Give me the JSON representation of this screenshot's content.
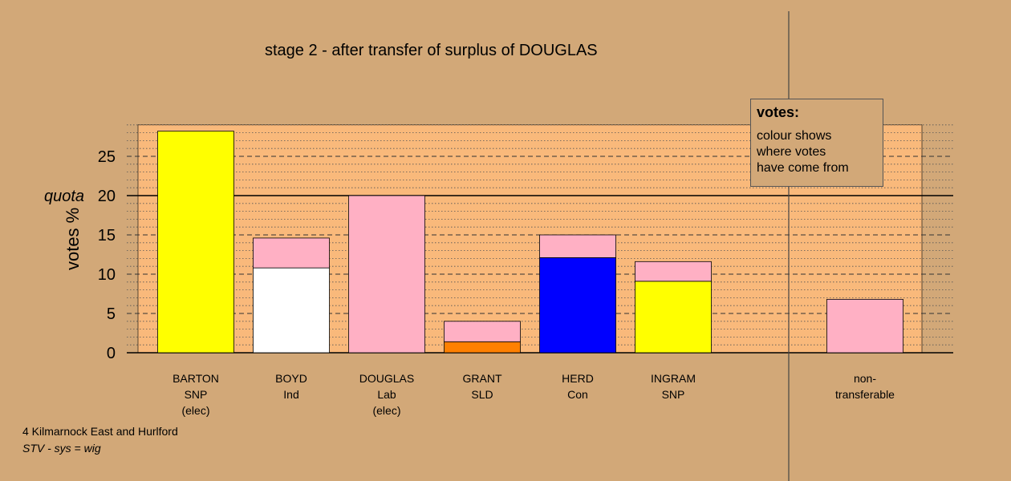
{
  "title": "stage 2 - after transfer of surplus of DOUGLAS",
  "footer": {
    "ward": "4 Kilmarnock East and Hurlford",
    "system": "STV - sys = wig"
  },
  "legend": {
    "title": "votes:",
    "lines": [
      "colour shows",
      "where votes",
      "have come from"
    ]
  },
  "quota_label": "quota",
  "colors": {
    "background": "#d2a878",
    "plot_area": "#f9b97b",
    "SNP": "#ffff00",
    "Ind": "#ffffff",
    "Lab": "#ffb0c4",
    "SLD": "#ff8000",
    "Con": "#0000ff"
  },
  "chart_data": {
    "type": "bar",
    "stacked": true,
    "ylabel": "votes %",
    "ylim": [
      0,
      29
    ],
    "yticks": [
      0,
      5,
      10,
      15,
      20,
      25
    ],
    "quota": 20,
    "grid": true,
    "categories": [
      {
        "lines": [
          "BARTON",
          "SNP",
          "(elec)"
        ],
        "segments": [
          {
            "from": "SNP",
            "color": "#ffff00",
            "value": 28.2
          }
        ]
      },
      {
        "lines": [
          "BOYD",
          "Ind"
        ],
        "segments": [
          {
            "from": "Ind",
            "color": "#ffffff",
            "value": 10.8
          },
          {
            "from": "Lab",
            "color": "#ffb0c4",
            "value": 3.8
          }
        ]
      },
      {
        "lines": [
          "DOUGLAS",
          "Lab",
          "(elec)"
        ],
        "segments": [
          {
            "from": "Lab",
            "color": "#ffb0c4",
            "value": 20.0
          }
        ]
      },
      {
        "lines": [
          "GRANT",
          "SLD"
        ],
        "segments": [
          {
            "from": "SLD",
            "color": "#ff8000",
            "value": 1.4
          },
          {
            "from": "Lab",
            "color": "#ffb0c4",
            "value": 2.6
          }
        ]
      },
      {
        "lines": [
          "HERD",
          "Con"
        ],
        "segments": [
          {
            "from": "Con",
            "color": "#0000ff",
            "value": 12.1
          },
          {
            "from": "Lab",
            "color": "#ffb0c4",
            "value": 2.9
          }
        ]
      },
      {
        "lines": [
          "INGRAM",
          "SNP"
        ],
        "segments": [
          {
            "from": "SNP",
            "color": "#ffff00",
            "value": 9.1
          },
          {
            "from": "Lab",
            "color": "#ffb0c4",
            "value": 2.5
          }
        ]
      },
      {
        "lines": [
          "non-",
          "transferable"
        ],
        "segments": [
          {
            "from": "Lab",
            "color": "#ffb0c4",
            "value": 6.8
          }
        ]
      }
    ]
  }
}
